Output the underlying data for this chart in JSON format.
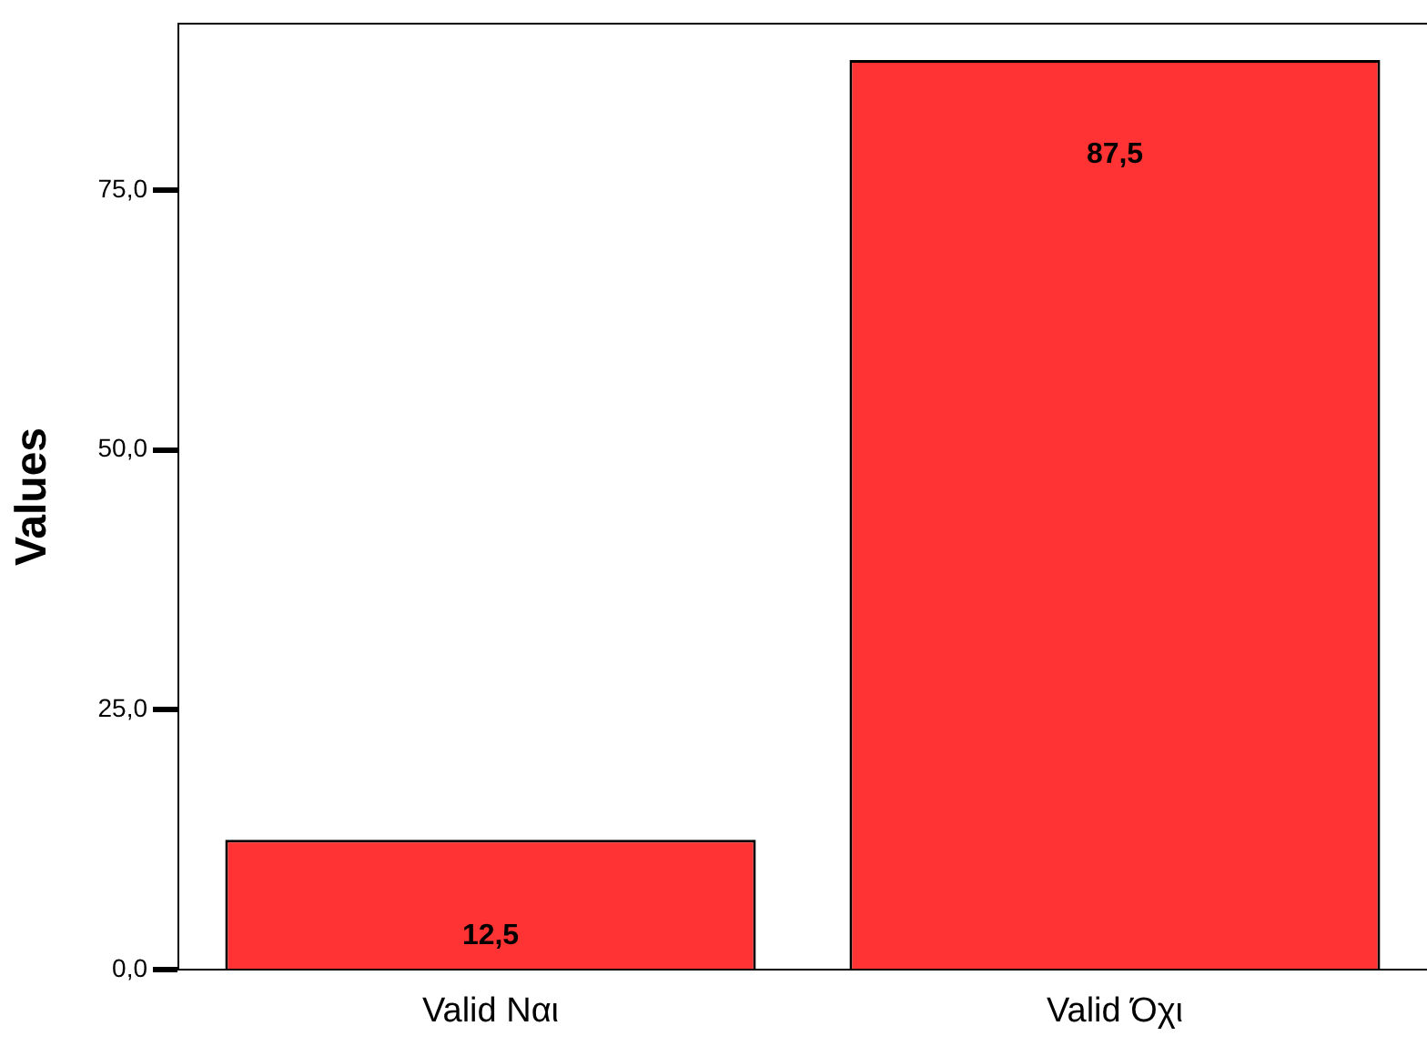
{
  "chart_data": {
    "type": "bar",
    "ylabel": "Values",
    "categories": [
      "Valid Ναι",
      "Valid Όχι"
    ],
    "values": [
      12.5,
      87.5
    ],
    "value_labels": [
      "12,5",
      "87,5"
    ],
    "color": "#ff3333",
    "ylim": [
      0,
      91
    ],
    "yticks": [
      {
        "value": 0,
        "label": "0,0"
      },
      {
        "value": 25,
        "label": "25,0"
      },
      {
        "value": 50,
        "label": "50,0"
      },
      {
        "value": 75,
        "label": "75,0"
      }
    ],
    "grid": false,
    "legend": false
  }
}
